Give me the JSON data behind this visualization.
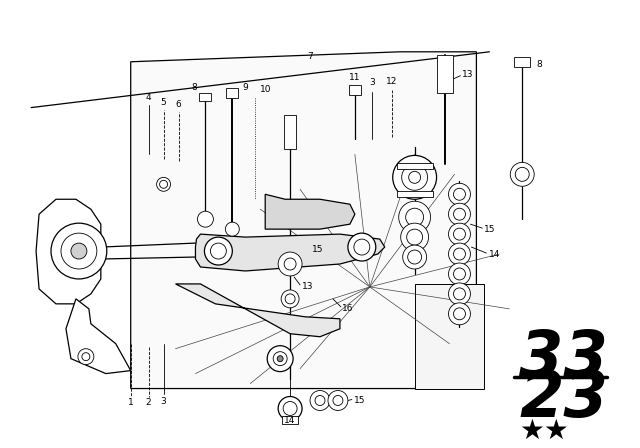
{
  "bg_color": "#ffffff",
  "line_color": "#000000",
  "number_label_33": "33",
  "number_label_23": "23",
  "stars": "★★",
  "fig_width": 6.4,
  "fig_height": 4.48,
  "dpi": 100,
  "lw_thin": 0.6,
  "lw_med": 0.9,
  "lw_thick": 1.4,
  "panel_color": "#ffffff",
  "part_label_fontsize": 6.5
}
